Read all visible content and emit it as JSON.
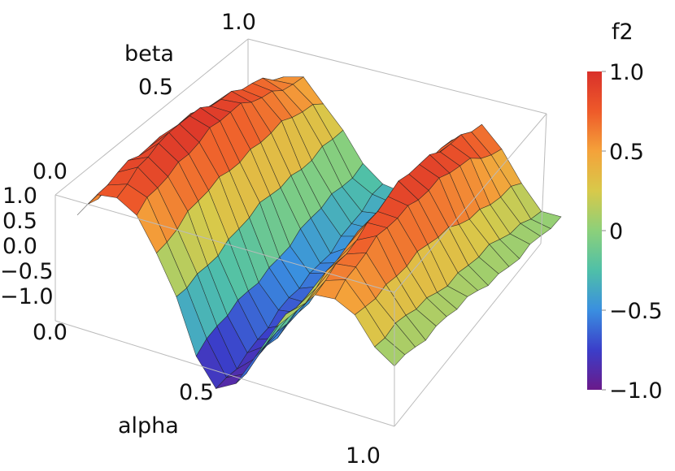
{
  "chart_data": {
    "type": "surface3d",
    "title": "",
    "xlabel": "alpha",
    "ylabel": "beta",
    "zlabel": "",
    "xlim": [
      0.0,
      1.0
    ],
    "ylim": [
      0.0,
      1.0
    ],
    "zlim": [
      -1.0,
      1.0
    ],
    "x_ticks": [
      "0.0",
      "0.5",
      "1.0"
    ],
    "y_ticks": [
      "0.0",
      "0.5",
      "1.0"
    ],
    "z_ticks": [
      "1.0",
      "0.5",
      "0.0",
      "−0.5",
      "−1.0"
    ],
    "colorbar": {
      "label": "f2",
      "range": [
        -1.0,
        1.0
      ],
      "ticks": [
        "1.0",
        "0.5",
        "0",
        "−0.5",
        "−1.0"
      ],
      "tick_values": [
        1.0,
        0.5,
        0.0,
        -0.5,
        -1.0
      ],
      "colors": [
        "#6a1a8a",
        "#3b3ec9",
        "#3a8fe0",
        "#4fc0a8",
        "#8cd07a",
        "#d8c94a",
        "#f4a23a",
        "#ee5a2a",
        "#d9302a"
      ]
    },
    "grid_resolution": 16,
    "surface_description": "f2 over alpha and beta: two diagonal ridges near +1 (around alpha 0.05-0.2 and alpha 0.75-0.85), a valley near -1 around alpha 0.45, edges near 0"
  }
}
